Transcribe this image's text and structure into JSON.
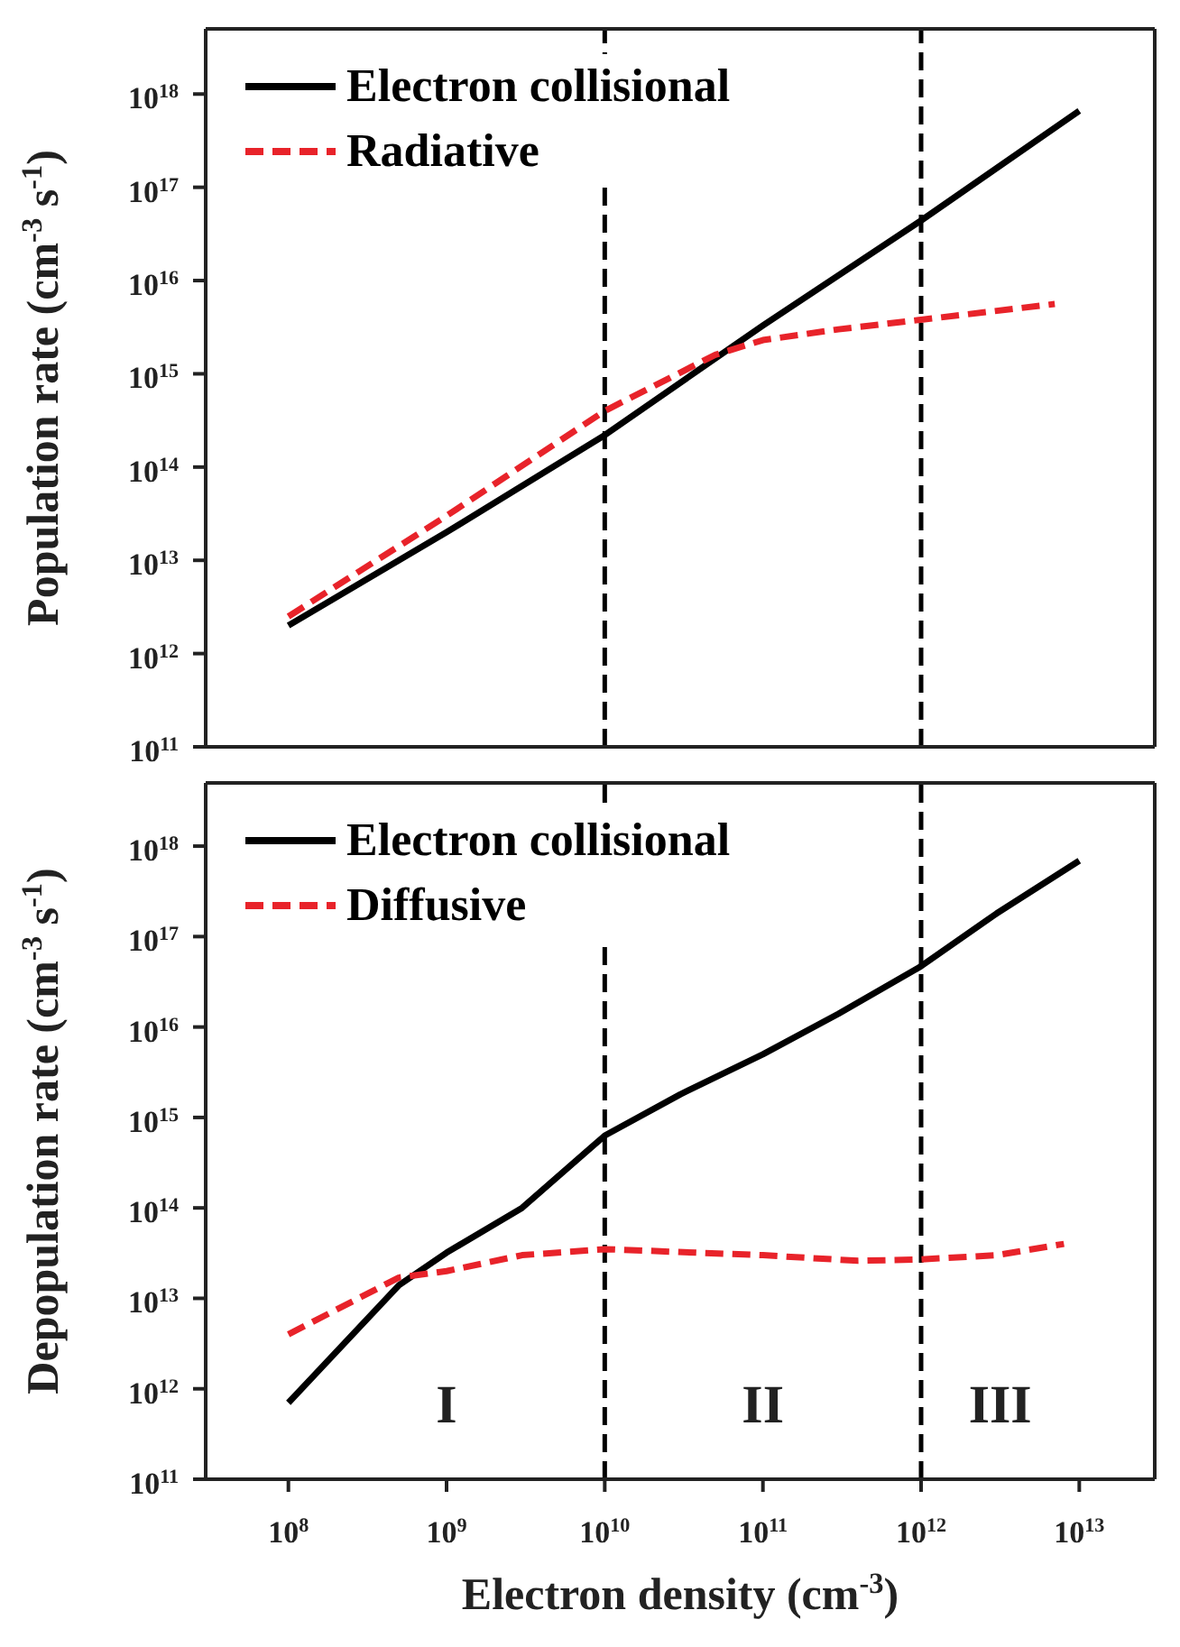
{
  "chart_data": [
    {
      "type": "line",
      "ylabel": "Population rate (cm$^{-3}$ s$^{-1}$)",
      "log": "xy",
      "legend": "top left",
      "tick_labels": "y",
      "xlim": [
        30000000.0,
        30000000000000.0
      ],
      "ylim": [
        100000000000.0,
        5e+18
      ],
      "xticks": [
        {
          "value": 100000000.0,
          "label": null
        },
        {
          "value": 1000000000.0,
          "label": null
        },
        {
          "value": 10000000000.0,
          "label": null
        },
        {
          "value": 100000000000.0,
          "label": null
        },
        {
          "value": 1000000000000.0,
          "label": null
        },
        {
          "value": 10000000000000.0,
          "label": null
        }
      ],
      "yticks": [
        {
          "value": 100000000000.0,
          "label": "10$^{11}$"
        },
        {
          "value": 1000000000000.0,
          "label": "10$^{12}$"
        },
        {
          "value": 10000000000000.0,
          "label": "10$^{13}$"
        },
        {
          "value": 100000000000000.0,
          "label": "10$^{14}$"
        },
        {
          "value": 1000000000000000.0,
          "label": "10$^{15}$"
        },
        {
          "value": 1e+16,
          "label": "10$^{16}$"
        },
        {
          "value": 1e+17,
          "label": "10$^{17}$"
        },
        {
          "value": 1e+18,
          "label": "10$^{18}$"
        }
      ],
      "series": [
        {
          "name": "Electron collisional",
          "color": "#000000",
          "line_style": "solid",
          "x": [
            100000000.0,
            1000000000.0,
            10000000000.0,
            100000000000.0,
            1000000000000.0,
            10000000000000.0
          ],
          "values": [
            2000000000000.0,
            20000000000000.0,
            220000000000000.0,
            3300000000000000.0,
            4.4e+16,
            6.6e+17
          ]
        },
        {
          "name": "Radiative",
          "color": "#e8232a",
          "line_style": "dashed",
          "x": [
            100000000.0,
            1000000000.0,
            10000000000.0,
            50000000000.0,
            100000000000.0,
            300000000000.0,
            1000000000000.0,
            7000000000000.0
          ],
          "values": [
            2500000000000.0,
            30000000000000.0,
            400000000000000.0,
            1600000000000000.0,
            2300000000000000.0,
            3000000000000000.0,
            3800000000000000.0,
            5600000000000000.0
          ]
        }
      ],
      "ref_lines": [
        {
          "axis": "x",
          "value": 10000000000.0,
          "color": "#000000",
          "line_style": "dashed"
        },
        {
          "axis": "x",
          "value": 1000000000000.0,
          "color": "#000000",
          "line_style": "dashed"
        }
      ]
    },
    {
      "type": "line",
      "ylabel": "Depopulation rate (cm$^{-3}$ s$^{-1}$)",
      "xlabel": "Electron density (cm$^{-3}$)",
      "log": "xy",
      "legend": "top left",
      "xlim": [
        30000000.0,
        30000000000000.0
      ],
      "ylim": [
        100000000000.0,
        5e+18
      ],
      "xticks": [
        {
          "value": 100000000.0,
          "label": "10$^{8}$"
        },
        {
          "value": 1000000000.0,
          "label": "10$^{9}$"
        },
        {
          "value": 10000000000.0,
          "label": "10$^{10}$"
        },
        {
          "value": 100000000000.0,
          "label": "10$^{11}$"
        },
        {
          "value": 1000000000000.0,
          "label": "10$^{12}$"
        },
        {
          "value": 10000000000000.0,
          "label": "10$^{13}$"
        }
      ],
      "yticks": [
        {
          "value": 100000000000.0,
          "label": "10$^{11}$"
        },
        {
          "value": 1000000000000.0,
          "label": "10$^{12}$"
        },
        {
          "value": 10000000000000.0,
          "label": "10$^{13}$"
        },
        {
          "value": 100000000000000.0,
          "label": "10$^{14}$"
        },
        {
          "value": 1000000000000000.0,
          "label": "10$^{15}$"
        },
        {
          "value": 1e+16,
          "label": "10$^{16}$"
        },
        {
          "value": 1e+17,
          "label": "10$^{17}$"
        },
        {
          "value": 1e+18,
          "label": "10$^{18}$"
        }
      ],
      "series": [
        {
          "name": "Electron collisional",
          "color": "#000000",
          "line_style": "solid",
          "x": [
            100000000.0,
            500000000.0,
            1000000000.0,
            3000000000.0,
            10000000000.0,
            30000000000.0,
            100000000000.0,
            300000000000.0,
            1000000000000.0,
            3000000000000.0,
            10000000000000.0
          ],
          "values": [
            700000000000.0,
            14000000000000.0,
            32000000000000.0,
            100000000000000.0,
            630000000000000.0,
            1800000000000000.0,
            5000000000000000.0,
            1.4e+16,
            4.7e+16,
            1.8e+17,
            6.9e+17
          ]
        },
        {
          "name": "Diffusive",
          "color": "#e8232a",
          "line_style": "dashed",
          "x": [
            100000000.0,
            500000000.0,
            1000000000.0,
            3000000000.0,
            10000000000.0,
            100000000000.0,
            400000000000.0,
            1000000000000.0,
            3000000000000.0,
            8000000000000.0
          ],
          "values": [
            4000000000000.0,
            17000000000000.0,
            20000000000000.0,
            30000000000000.0,
            35000000000000.0,
            30000000000000.0,
            26000000000000.0,
            27000000000000.0,
            30000000000000.0,
            40000000000000.0
          ]
        }
      ],
      "ref_lines": [
        {
          "axis": "x",
          "value": 10000000000.0,
          "color": "#000000",
          "line_style": "dashed"
        },
        {
          "axis": "x",
          "value": 1000000000000.0,
          "color": "#000000",
          "line_style": "dashed"
        }
      ],
      "annotations": [
        "I",
        "II",
        "III"
      ]
    }
  ]
}
